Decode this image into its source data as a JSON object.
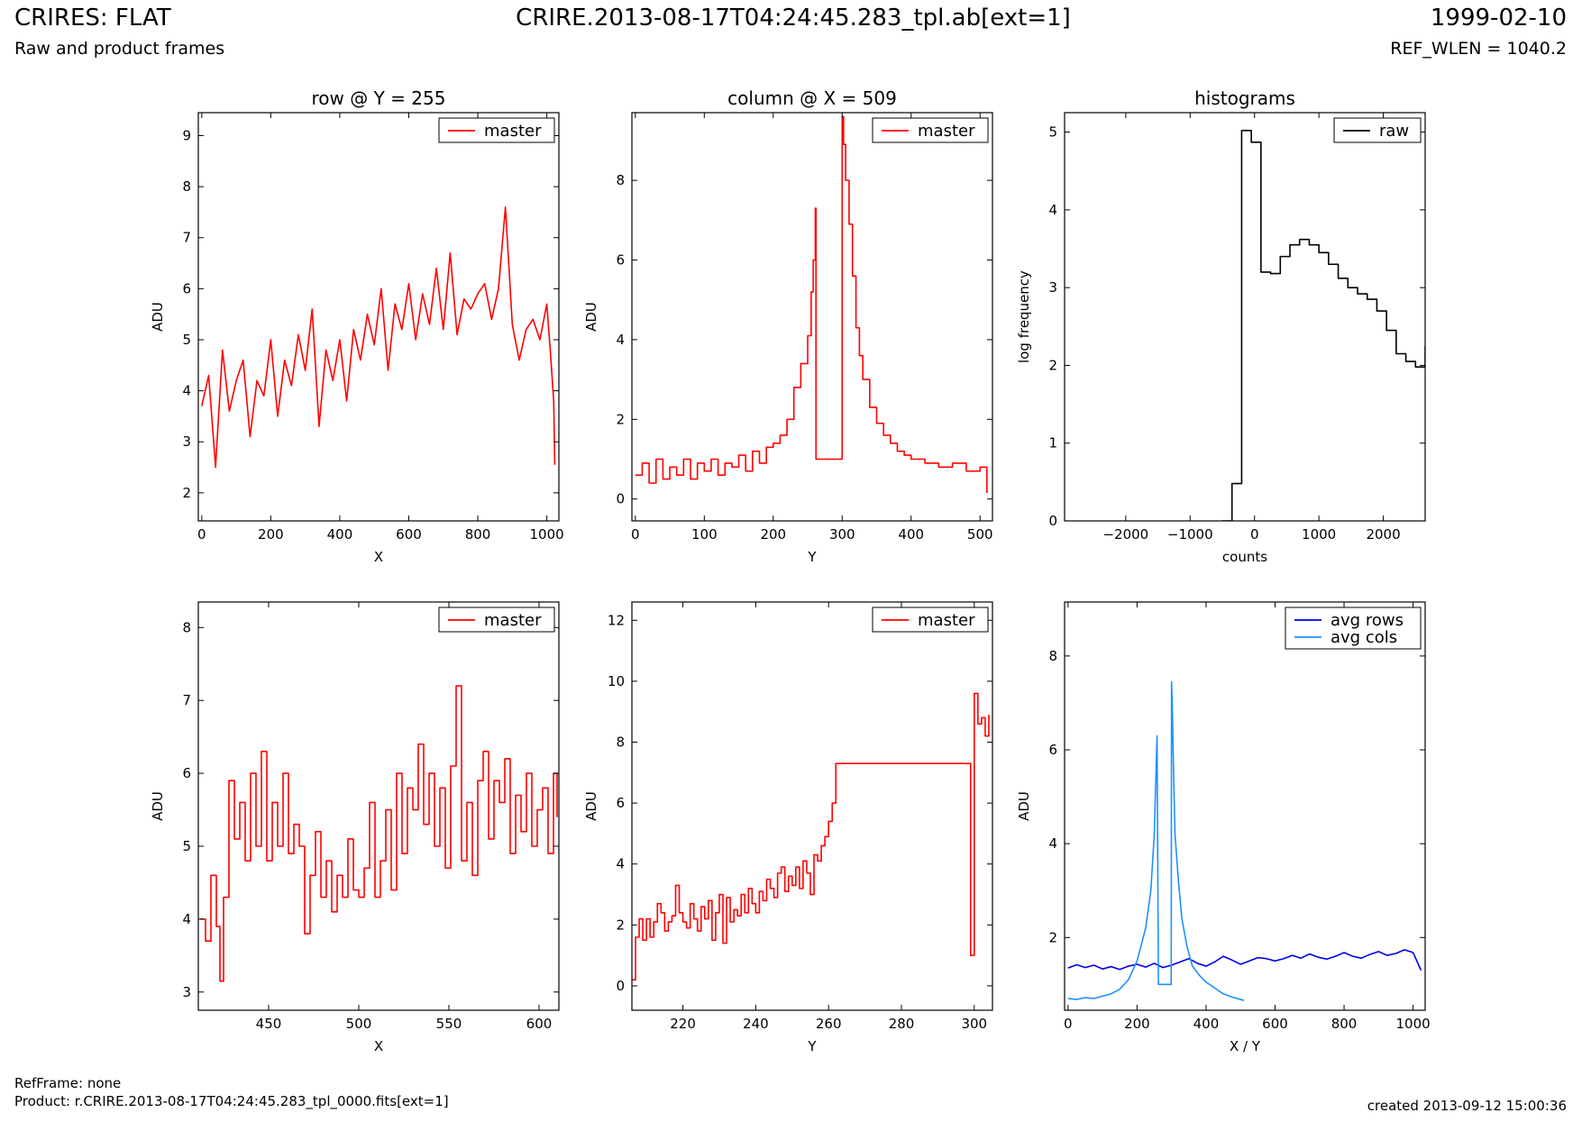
{
  "header": {
    "title": "CRIRES: FLAT",
    "subtitle": "Raw and product frames",
    "file": "CRIRE.2013-08-17T04:24:45.283_tpl.ab[ext=1]",
    "date": "1999-02-10",
    "ref_wlen": "REF_WLEN = 1040.2"
  },
  "footer": {
    "refframe": "RefFrame: none",
    "product": "Product: r.CRIRE.2013-08-17T04:24:45.283_tpl_0000.fits[ext=1]",
    "created": "created 2013-09-12 15:00:36"
  },
  "colors": {
    "master": "#ff0000",
    "raw": "#000000",
    "avg_rows": "#0000ee",
    "avg_cols": "#1e90ff"
  },
  "chart_data": [
    {
      "type": "line",
      "title": "row @ Y = 255",
      "xlabel": "X",
      "ylabel": "ADU",
      "xlim": [
        -10,
        1035
      ],
      "ylim": [
        1.45,
        9.45
      ],
      "xticks": [
        0,
        200,
        400,
        600,
        800,
        1000
      ],
      "yticks": [
        2,
        3,
        4,
        5,
        6,
        7,
        8,
        9
      ],
      "legend": "top-right",
      "series": [
        {
          "name": "master",
          "color": "#ff0000",
          "step": false,
          "x": [
            0,
            20,
            40,
            60,
            80,
            100,
            120,
            140,
            160,
            180,
            200,
            220,
            240,
            260,
            280,
            300,
            320,
            340,
            360,
            380,
            400,
            420,
            440,
            460,
            480,
            500,
            520,
            540,
            560,
            580,
            600,
            620,
            640,
            660,
            680,
            700,
            720,
            740,
            760,
            780,
            800,
            820,
            840,
            860,
            880,
            900,
            920,
            940,
            960,
            980,
            1000,
            1010,
            1020,
            1023
          ],
          "y": [
            3.7,
            4.3,
            2.5,
            4.8,
            3.6,
            4.2,
            4.6,
            3.1,
            4.2,
            3.9,
            5.0,
            3.5,
            4.6,
            4.1,
            5.1,
            4.4,
            5.6,
            3.3,
            4.8,
            4.2,
            5.0,
            3.8,
            5.2,
            4.6,
            5.5,
            4.9,
            6.0,
            4.4,
            5.7,
            5.2,
            6.1,
            5.0,
            5.9,
            5.3,
            6.4,
            5.2,
            6.7,
            5.1,
            5.8,
            5.6,
            5.9,
            6.1,
            5.4,
            6.0,
            7.6,
            5.3,
            4.6,
            5.2,
            5.4,
            5.0,
            5.7,
            4.8,
            3.8,
            2.55
          ]
        }
      ]
    },
    {
      "type": "line",
      "title": "column @ X = 509",
      "xlabel": "Y",
      "ylabel": "ADU",
      "xlim": [
        -5,
        518
      ],
      "ylim": [
        -0.55,
        9.7
      ],
      "xticks": [
        0,
        100,
        200,
        300,
        400,
        500
      ],
      "yticks": [
        0,
        2,
        4,
        6,
        8
      ],
      "legend": "top-right",
      "series": [
        {
          "name": "master",
          "color": "#ff0000",
          "step": true,
          "x": [
            0,
            10,
            20,
            30,
            40,
            50,
            60,
            70,
            80,
            90,
            100,
            110,
            120,
            130,
            140,
            150,
            160,
            170,
            180,
            190,
            200,
            210,
            220,
            230,
            240,
            250,
            255,
            258,
            261,
            262,
            299,
            300,
            302,
            305,
            310,
            315,
            320,
            325,
            330,
            340,
            350,
            360,
            370,
            380,
            390,
            400,
            420,
            440,
            460,
            480,
            500,
            510
          ],
          "y": [
            0.6,
            0.9,
            0.4,
            1.0,
            0.5,
            0.8,
            0.6,
            1.0,
            0.5,
            0.9,
            0.7,
            1.0,
            0.6,
            0.9,
            0.8,
            1.1,
            0.7,
            1.2,
            0.9,
            1.3,
            1.4,
            1.6,
            2.0,
            2.8,
            3.4,
            4.1,
            5.2,
            6.0,
            7.3,
            1.0,
            1.0,
            9.6,
            8.9,
            8.0,
            6.9,
            5.6,
            4.3,
            3.6,
            3.0,
            2.3,
            1.9,
            1.6,
            1.4,
            1.2,
            1.1,
            1.0,
            0.9,
            0.8,
            0.9,
            0.7,
            0.8,
            0.15
          ]
        }
      ]
    },
    {
      "type": "step",
      "title": "histograms",
      "xlabel": "counts",
      "ylabel": "log frequency",
      "xlim": [
        -2950,
        2650
      ],
      "ylim": [
        0,
        5.25
      ],
      "xticks": [
        -2000,
        -1000,
        0,
        1000,
        2000
      ],
      "xtick_labels": [
        "−2000",
        "−1000",
        "0",
        "1000",
        "2000"
      ],
      "yticks": [
        0,
        1,
        2,
        3,
        4,
        5
      ],
      "legend": "top-right",
      "series": [
        {
          "name": "raw",
          "color": "#000000",
          "x": [
            -500,
            -350,
            -200,
            -50,
            100,
            250,
            400,
            550,
            700,
            850,
            1000,
            1150,
            1300,
            1450,
            1600,
            1750,
            1900,
            2050,
            2200,
            2350,
            2500,
            2650
          ],
          "y": [
            0,
            0.48,
            5.02,
            4.87,
            3.2,
            3.18,
            3.4,
            3.55,
            3.62,
            3.55,
            3.45,
            3.3,
            3.12,
            3.0,
            2.92,
            2.85,
            2.7,
            2.45,
            2.15,
            2.05,
            1.98,
            2.25
          ]
        }
      ]
    },
    {
      "type": "line",
      "title": "",
      "xlabel": "X",
      "ylabel": "ADU",
      "xlim": [
        411,
        611
      ],
      "ylim": [
        2.75,
        8.35
      ],
      "xticks": [
        450,
        500,
        550,
        600
      ],
      "yticks": [
        3,
        4,
        5,
        6,
        7,
        8
      ],
      "legend": "top-right",
      "series": [
        {
          "name": "master",
          "color": "#ff0000",
          "step": true,
          "x": [
            412,
            415,
            418,
            421,
            423,
            425,
            428,
            431,
            434,
            437,
            440,
            443,
            446,
            449,
            452,
            455,
            458,
            461,
            464,
            467,
            470,
            473,
            476,
            479,
            482,
            485,
            488,
            491,
            494,
            497,
            500,
            503,
            506,
            509,
            512,
            515,
            518,
            521,
            524,
            527,
            530,
            533,
            536,
            539,
            542,
            545,
            548,
            551,
            554,
            557,
            560,
            563,
            566,
            569,
            572,
            575,
            578,
            581,
            584,
            587,
            590,
            593,
            596,
            599,
            602,
            605,
            608,
            610
          ],
          "y": [
            4.0,
            3.7,
            4.6,
            3.9,
            3.15,
            4.3,
            5.9,
            5.1,
            5.6,
            4.8,
            6.0,
            5.0,
            6.3,
            4.8,
            5.6,
            5.0,
            6.0,
            4.9,
            5.3,
            5.0,
            3.8,
            4.6,
            5.2,
            4.3,
            4.8,
            4.1,
            4.6,
            4.3,
            5.1,
            4.4,
            4.3,
            4.7,
            5.6,
            4.3,
            4.8,
            5.5,
            4.4,
            6.0,
            4.9,
            5.8,
            5.5,
            6.4,
            5.3,
            6.0,
            5.0,
            5.8,
            4.7,
            6.1,
            7.2,
            4.8,
            5.6,
            4.6,
            5.9,
            6.3,
            5.1,
            5.9,
            5.6,
            6.2,
            4.9,
            5.7,
            5.2,
            6.0,
            5.0,
            5.5,
            5.8,
            4.9,
            6.0,
            5.4
          ]
        }
      ]
    },
    {
      "type": "line",
      "title": "",
      "xlabel": "Y",
      "ylabel": "ADU",
      "xlim": [
        206,
        305
      ],
      "ylim": [
        -0.8,
        12.6
      ],
      "xticks": [
        220,
        240,
        260,
        280,
        300
      ],
      "yticks": [
        0,
        2,
        4,
        6,
        8,
        10,
        12
      ],
      "legend": "top-right",
      "series": [
        {
          "name": "master",
          "color": "#ff0000",
          "step": true,
          "x": [
            206,
            207,
            208,
            209,
            210,
            211,
            212,
            213,
            214,
            215,
            216,
            217,
            218,
            219,
            220,
            221,
            222,
            223,
            224,
            225,
            226,
            227,
            228,
            229,
            230,
            231,
            232,
            233,
            234,
            235,
            236,
            237,
            238,
            239,
            240,
            241,
            242,
            243,
            244,
            245,
            246,
            247,
            248,
            249,
            250,
            251,
            252,
            253,
            254,
            255,
            256,
            257,
            258,
            259,
            260,
            261,
            262,
            299,
            300,
            301,
            302,
            303,
            304
          ],
          "y": [
            0.2,
            1.6,
            2.2,
            1.5,
            2.2,
            1.6,
            2.1,
            2.7,
            2.4,
            1.8,
            2.1,
            2.3,
            3.3,
            2.4,
            2.1,
            1.9,
            2.7,
            2.2,
            1.8,
            2.6,
            2.2,
            2.8,
            1.5,
            2.4,
            3.0,
            1.4,
            2.9,
            2.1,
            2.5,
            2.3,
            3.0,
            2.4,
            3.2,
            2.7,
            2.4,
            3.1,
            2.8,
            3.5,
            3.2,
            2.9,
            3.7,
            3.9,
            3.1,
            3.6,
            3.3,
            3.9,
            3.2,
            4.1,
            3.7,
            3.0,
            4.3,
            4.1,
            4.6,
            4.9,
            5.4,
            6.0,
            7.3,
            1.0,
            9.6,
            8.6,
            8.8,
            8.2,
            8.9
          ]
        }
      ]
    },
    {
      "type": "line",
      "title": "",
      "xlabel": "X / Y",
      "ylabel": "ADU",
      "xlim": [
        -10,
        1035
      ],
      "ylim": [
        0.45,
        9.15
      ],
      "xticks": [
        0,
        200,
        400,
        600,
        800,
        1000
      ],
      "yticks": [
        2,
        4,
        6,
        8
      ],
      "legend": "top-right",
      "series": [
        {
          "name": "avg rows",
          "color": "#0000ee",
          "step": false,
          "x": [
            0,
            25,
            50,
            75,
            100,
            125,
            150,
            175,
            200,
            225,
            250,
            275,
            300,
            325,
            350,
            375,
            400,
            425,
            450,
            475,
            500,
            525,
            550,
            575,
            600,
            625,
            650,
            675,
            700,
            725,
            750,
            775,
            800,
            825,
            850,
            875,
            900,
            925,
            950,
            975,
            1000,
            1023
          ],
          "y": [
            1.35,
            1.42,
            1.36,
            1.41,
            1.33,
            1.38,
            1.32,
            1.39,
            1.43,
            1.37,
            1.45,
            1.36,
            1.41,
            1.48,
            1.55,
            1.45,
            1.39,
            1.48,
            1.6,
            1.52,
            1.43,
            1.5,
            1.57,
            1.55,
            1.5,
            1.55,
            1.62,
            1.56,
            1.65,
            1.58,
            1.54,
            1.6,
            1.68,
            1.6,
            1.56,
            1.64,
            1.7,
            1.62,
            1.66,
            1.74,
            1.68,
            1.3
          ]
        },
        {
          "name": "avg cols",
          "color": "#1e90ff",
          "step": false,
          "x": [
            0,
            25,
            50,
            75,
            100,
            125,
            150,
            175,
            200,
            225,
            240,
            250,
            256,
            258,
            262,
            280,
            299,
            300,
            302,
            305,
            310,
            320,
            330,
            345,
            360,
            380,
            400,
            420,
            450,
            480,
            510
          ],
          "y": [
            0.7,
            0.68,
            0.72,
            0.7,
            0.75,
            0.8,
            0.9,
            1.1,
            1.5,
            2.2,
            3.0,
            4.2,
            5.8,
            6.3,
            1.0,
            1.0,
            1.0,
            7.45,
            7.0,
            5.8,
            4.2,
            3.2,
            2.4,
            1.8,
            1.4,
            1.2,
            1.05,
            0.95,
            0.8,
            0.72,
            0.66
          ]
        }
      ]
    }
  ]
}
